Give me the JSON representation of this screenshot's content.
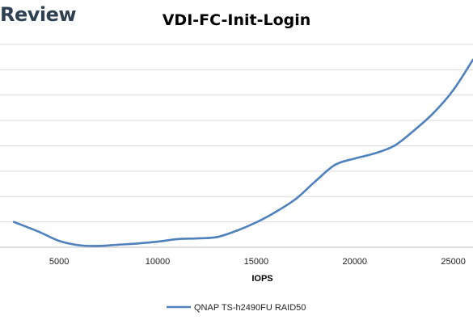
{
  "brand": "Review",
  "chart_data": {
    "type": "line",
    "title": "VDI-FC-Init-Login",
    "xlabel": "IOPS",
    "ylabel": "",
    "xlim": [
      2000,
      26000
    ],
    "ylim": [
      0,
      8
    ],
    "x_ticks": [
      5000,
      10000,
      15000,
      20000,
      25000
    ],
    "grid": true,
    "legend": "bottom",
    "series": [
      {
        "name": "QNAP TS-h2490FU RAID50",
        "color": "#4f81bd",
        "x": [
          2700,
          4000,
          5000,
          6000,
          7000,
          8000,
          9000,
          10000,
          11000,
          12000,
          13000,
          14000,
          15000,
          16000,
          17000,
          18000,
          19000,
          20000,
          21000,
          22000,
          23000,
          24000,
          25000,
          26000
        ],
        "y": [
          1.0,
          0.6,
          0.25,
          0.08,
          0.05,
          0.1,
          0.15,
          0.22,
          0.32,
          0.35,
          0.4,
          0.65,
          0.98,
          1.4,
          1.9,
          2.6,
          3.25,
          3.5,
          3.7,
          4.0,
          4.6,
          5.3,
          6.2,
          7.4
        ]
      }
    ]
  }
}
